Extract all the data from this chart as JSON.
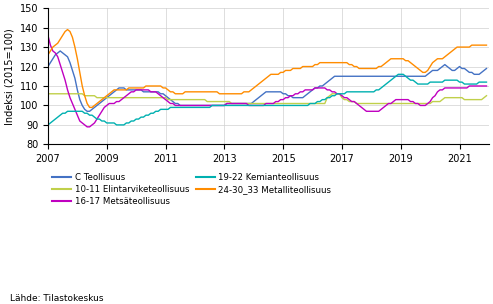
{
  "ylabel": "Indeksi (2015=100)",
  "ylim": [
    80,
    150
  ],
  "yticks": [
    80,
    90,
    100,
    110,
    120,
    130,
    140,
    150
  ],
  "xticks_years": [
    2007,
    2009,
    2011,
    2013,
    2015,
    2017,
    2019,
    2021
  ],
  "source": "Lähde: Tilastokeskus",
  "series_colors": {
    "C Teollisuus": "#4472c4",
    "10-11 Elintarviketeollisuus": "#c0d04a",
    "16-17 Metsäteollisuus": "#c000c0",
    "19-22 Kemianteollisuus": "#00b0b0",
    "24-30_33 Metalliteollisuus": "#ff8c00"
  },
  "legend_col1": [
    "C Teollisuus",
    "16-17 Metsäteollisuus",
    "24-30_33 Metalliteollisuus"
  ],
  "legend_col2": [
    "10-11 Elintarviketeollisuus",
    "19-22 Kemianteollisuus"
  ],
  "C_Teollisuus": [
    120,
    122,
    124,
    126,
    127,
    128,
    127,
    126,
    125,
    122,
    118,
    114,
    108,
    103,
    100,
    98,
    97,
    97,
    98,
    99,
    100,
    101,
    102,
    103,
    104,
    105,
    106,
    107,
    108,
    109,
    109,
    109,
    108,
    108,
    108,
    108,
    108,
    108,
    108,
    107,
    107,
    107,
    107,
    107,
    107,
    107,
    106,
    106,
    105,
    104,
    103,
    102,
    101,
    101,
    100,
    100,
    100,
    100,
    100,
    100,
    100,
    100,
    100,
    100,
    100,
    100,
    100,
    100,
    100,
    100,
    100,
    100,
    100,
    101,
    101,
    101,
    101,
    101,
    101,
    101,
    101,
    101,
    101,
    101,
    102,
    103,
    104,
    105,
    106,
    107,
    107,
    107,
    107,
    107,
    107,
    107,
    106,
    106,
    105,
    105,
    104,
    104,
    104,
    104,
    104,
    105,
    106,
    107,
    108,
    109,
    109,
    110,
    110,
    111,
    112,
    113,
    114,
    115,
    115,
    115,
    115,
    115,
    115,
    115,
    115,
    115,
    115,
    115,
    115,
    115,
    115,
    115,
    115,
    115,
    115,
    115,
    115,
    115,
    115,
    115,
    115,
    115,
    115,
    115,
    115,
    115,
    115,
    115,
    115,
    115,
    115,
    115,
    115,
    115,
    115,
    116,
    117,
    118,
    118,
    118,
    119,
    120,
    121,
    120,
    119,
    118,
    118,
    119,
    120,
    119,
    119,
    118,
    117,
    117,
    116,
    116,
    116,
    117,
    118,
    119
  ],
  "Elintarvik": [
    106,
    106,
    106,
    106,
    106,
    106,
    106,
    106,
    106,
    106,
    106,
    106,
    106,
    106,
    106,
    105,
    105,
    105,
    105,
    105,
    104,
    104,
    104,
    104,
    104,
    104,
    104,
    104,
    104,
    104,
    104,
    104,
    104,
    104,
    104,
    104,
    104,
    104,
    104,
    104,
    104,
    104,
    104,
    104,
    104,
    104,
    104,
    104,
    104,
    103,
    103,
    103,
    103,
    103,
    103,
    103,
    103,
    103,
    103,
    103,
    103,
    103,
    103,
    103,
    103,
    102,
    102,
    102,
    102,
    102,
    102,
    102,
    102,
    102,
    102,
    101,
    101,
    101,
    101,
    101,
    101,
    101,
    101,
    101,
    101,
    101,
    101,
    101,
    101,
    101,
    101,
    101,
    101,
    101,
    101,
    101,
    101,
    101,
    101,
    101,
    101,
    101,
    101,
    101,
    101,
    101,
    101,
    101,
    101,
    101,
    101,
    101,
    101,
    101,
    104,
    105,
    106,
    106,
    106,
    106,
    104,
    103,
    103,
    102,
    102,
    102,
    101,
    101,
    101,
    101,
    101,
    101,
    101,
    101,
    101,
    101,
    101,
    101,
    101,
    101,
    101,
    101,
    101,
    101,
    101,
    101,
    101,
    101,
    101,
    101,
    101,
    101,
    101,
    101,
    101,
    101,
    101,
    102,
    102,
    102,
    102,
    103,
    104,
    104,
    104,
    104,
    104,
    104,
    104,
    104,
    103,
    103,
    103,
    103,
    103,
    103,
    103,
    103,
    104,
    105
  ],
  "Metsateol": [
    136,
    131,
    128,
    127,
    125,
    121,
    117,
    113,
    108,
    104,
    101,
    98,
    95,
    92,
    91,
    90,
    89,
    89,
    90,
    91,
    93,
    95,
    97,
    99,
    100,
    101,
    101,
    101,
    102,
    102,
    103,
    104,
    105,
    106,
    107,
    107,
    108,
    108,
    108,
    108,
    108,
    108,
    107,
    107,
    107,
    106,
    105,
    104,
    103,
    102,
    101,
    101,
    100,
    100,
    100,
    100,
    100,
    100,
    100,
    100,
    100,
    100,
    100,
    100,
    100,
    100,
    100,
    100,
    100,
    100,
    100,
    100,
    100,
    101,
    101,
    101,
    101,
    101,
    101,
    101,
    101,
    101,
    100,
    100,
    100,
    100,
    100,
    100,
    100,
    101,
    101,
    101,
    101,
    102,
    102,
    103,
    103,
    104,
    104,
    105,
    105,
    106,
    106,
    107,
    107,
    108,
    108,
    108,
    108,
    109,
    109,
    109,
    109,
    109,
    108,
    108,
    107,
    107,
    106,
    106,
    105,
    104,
    104,
    103,
    102,
    102,
    101,
    100,
    99,
    98,
    97,
    97,
    97,
    97,
    97,
    97,
    98,
    99,
    100,
    101,
    101,
    102,
    103,
    103,
    103,
    103,
    103,
    103,
    102,
    102,
    101,
    101,
    100,
    100,
    100,
    101,
    102,
    104,
    105,
    107,
    108,
    108,
    109,
    109,
    109,
    109,
    109,
    109,
    109,
    109,
    109,
    109,
    110,
    110,
    110,
    110,
    110,
    110,
    110,
    110
  ],
  "Kemian": [
    90,
    91,
    92,
    93,
    94,
    95,
    96,
    96,
    97,
    97,
    97,
    97,
    97,
    97,
    97,
    96,
    96,
    95,
    95,
    94,
    93,
    93,
    92,
    92,
    91,
    91,
    91,
    91,
    90,
    90,
    90,
    90,
    91,
    91,
    92,
    92,
    93,
    93,
    94,
    94,
    95,
    95,
    96,
    96,
    97,
    97,
    98,
    98,
    98,
    98,
    99,
    99,
    99,
    99,
    99,
    99,
    99,
    99,
    99,
    99,
    99,
    99,
    99,
    99,
    99,
    99,
    99,
    100,
    100,
    100,
    100,
    100,
    100,
    100,
    100,
    100,
    100,
    100,
    100,
    100,
    100,
    100,
    100,
    100,
    100,
    100,
    100,
    100,
    100,
    100,
    100,
    100,
    100,
    100,
    100,
    100,
    100,
    100,
    100,
    100,
    100,
    100,
    100,
    100,
    100,
    100,
    100,
    101,
    101,
    101,
    102,
    102,
    103,
    103,
    104,
    104,
    105,
    105,
    106,
    106,
    106,
    106,
    107,
    107,
    107,
    107,
    107,
    107,
    107,
    107,
    107,
    107,
    107,
    107,
    108,
    108,
    109,
    110,
    111,
    112,
    113,
    114,
    115,
    116,
    116,
    116,
    115,
    114,
    113,
    113,
    112,
    111,
    111,
    111,
    111,
    111,
    112,
    112,
    112,
    112,
    112,
    112,
    113,
    113,
    113,
    113,
    113,
    113,
    112,
    112,
    111,
    111,
    111,
    111,
    111,
    111,
    112,
    112,
    112,
    112
  ],
  "Metalli": [
    126,
    128,
    130,
    131,
    132,
    134,
    136,
    138,
    139,
    138,
    135,
    130,
    124,
    117,
    110,
    105,
    101,
    99,
    99,
    100,
    101,
    102,
    103,
    104,
    105,
    106,
    107,
    108,
    108,
    108,
    108,
    108,
    108,
    109,
    109,
    109,
    109,
    109,
    109,
    109,
    110,
    110,
    110,
    110,
    110,
    110,
    110,
    109,
    109,
    108,
    107,
    107,
    106,
    106,
    106,
    106,
    107,
    107,
    107,
    107,
    107,
    107,
    107,
    107,
    107,
    107,
    107,
    107,
    107,
    107,
    106,
    106,
    106,
    106,
    106,
    106,
    106,
    106,
    106,
    106,
    107,
    107,
    107,
    108,
    109,
    110,
    111,
    112,
    113,
    114,
    115,
    116,
    116,
    116,
    116,
    117,
    117,
    118,
    118,
    118,
    119,
    119,
    119,
    119,
    120,
    120,
    120,
    120,
    120,
    121,
    121,
    122,
    122,
    122,
    122,
    122,
    122,
    122,
    122,
    122,
    122,
    122,
    122,
    121,
    121,
    120,
    120,
    119,
    119,
    119,
    119,
    119,
    119,
    119,
    119,
    120,
    120,
    121,
    122,
    123,
    124,
    124,
    124,
    124,
    124,
    124,
    123,
    123,
    122,
    121,
    120,
    119,
    118,
    117,
    117,
    118,
    120,
    122,
    123,
    124,
    124,
    124,
    125,
    126,
    127,
    128,
    129,
    130,
    130,
    130,
    130,
    130,
    130,
    131,
    131,
    131,
    131,
    131,
    131,
    131
  ]
}
